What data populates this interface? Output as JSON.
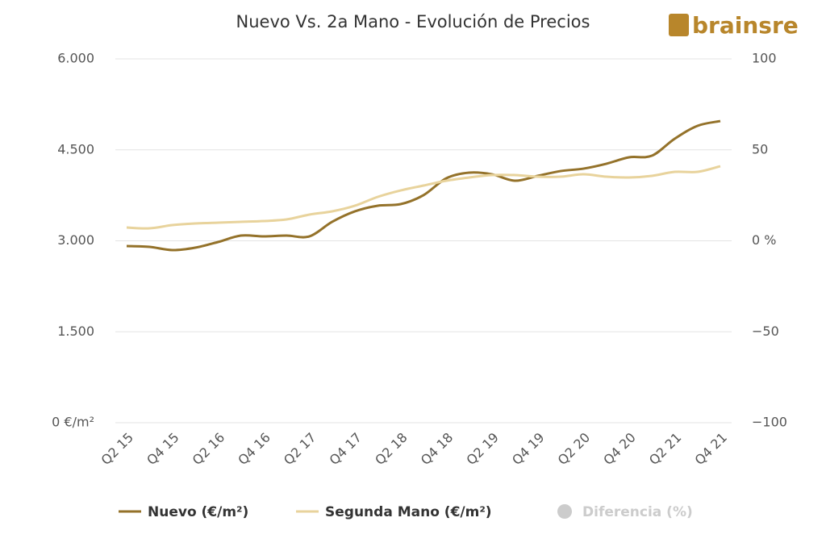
{
  "chart_data": {
    "type": "line",
    "title": "Nuevo Vs. 2a Mano - Evolución de Precios",
    "logo": "brainsre",
    "categories": [
      "Q2 15",
      null,
      "Q4 15",
      null,
      "Q2 16",
      null,
      "Q4 16",
      null,
      "Q2 17",
      null,
      "Q4 17",
      null,
      "Q2 18",
      null,
      "Q4 18",
      null,
      "Q2 19",
      null,
      "Q4 19",
      null,
      "Q2 20",
      null,
      "Q4 20",
      null,
      "Q2 21",
      null,
      "Q4 21"
    ],
    "series": [
      {
        "name": "Nuevo (€/m²)",
        "color": "#94722a",
        "values": [
          2913,
          2900,
          2847,
          2887,
          2980,
          3086,
          3073,
          3086,
          3073,
          3313,
          3486,
          3579,
          3605,
          3752,
          4031,
          4124,
          4097,
          3991,
          4071,
          4150,
          4190,
          4270,
          4377,
          4403,
          4683,
          4896,
          4975
        ]
      },
      {
        "name": "Segunda Mano (€/m²)",
        "color": "#e8d39c",
        "values": [
          3219,
          3206,
          3259,
          3286,
          3299,
          3313,
          3326,
          3352,
          3432,
          3486,
          3579,
          3725,
          3831,
          3911,
          3991,
          4044,
          4084,
          4084,
          4057,
          4057,
          4097,
          4057,
          4044,
          4071,
          4137,
          4137,
          4230
        ]
      },
      {
        "name": "Diferencia (%)",
        "color": "#cccccc",
        "axis": "y2",
        "visible": false,
        "values": [
          null,
          null,
          null,
          null,
          null,
          null,
          null,
          null,
          null,
          null,
          null,
          null,
          null,
          null,
          null,
          null,
          null,
          null,
          null,
          null,
          null,
          null,
          null,
          null,
          null,
          null,
          null
        ]
      }
    ],
    "ylim": [
      0,
      6000
    ],
    "yticks": [
      {
        "value": 0,
        "label": "0 €/m²"
      },
      {
        "value": 1500,
        "label": "1.500"
      },
      {
        "value": 3000,
        "label": "3.000"
      },
      {
        "value": 4500,
        "label": "4.500"
      },
      {
        "value": 6000,
        "label": "6.000"
      }
    ],
    "y2lim": [
      -100,
      100
    ],
    "y2ticks": [
      {
        "value": -100,
        "label": "−100"
      },
      {
        "value": -50,
        "label": "−50"
      },
      {
        "value": 0,
        "label": "0 %"
      },
      50,
      100
    ],
    "grid": true,
    "legend": "bottom"
  }
}
